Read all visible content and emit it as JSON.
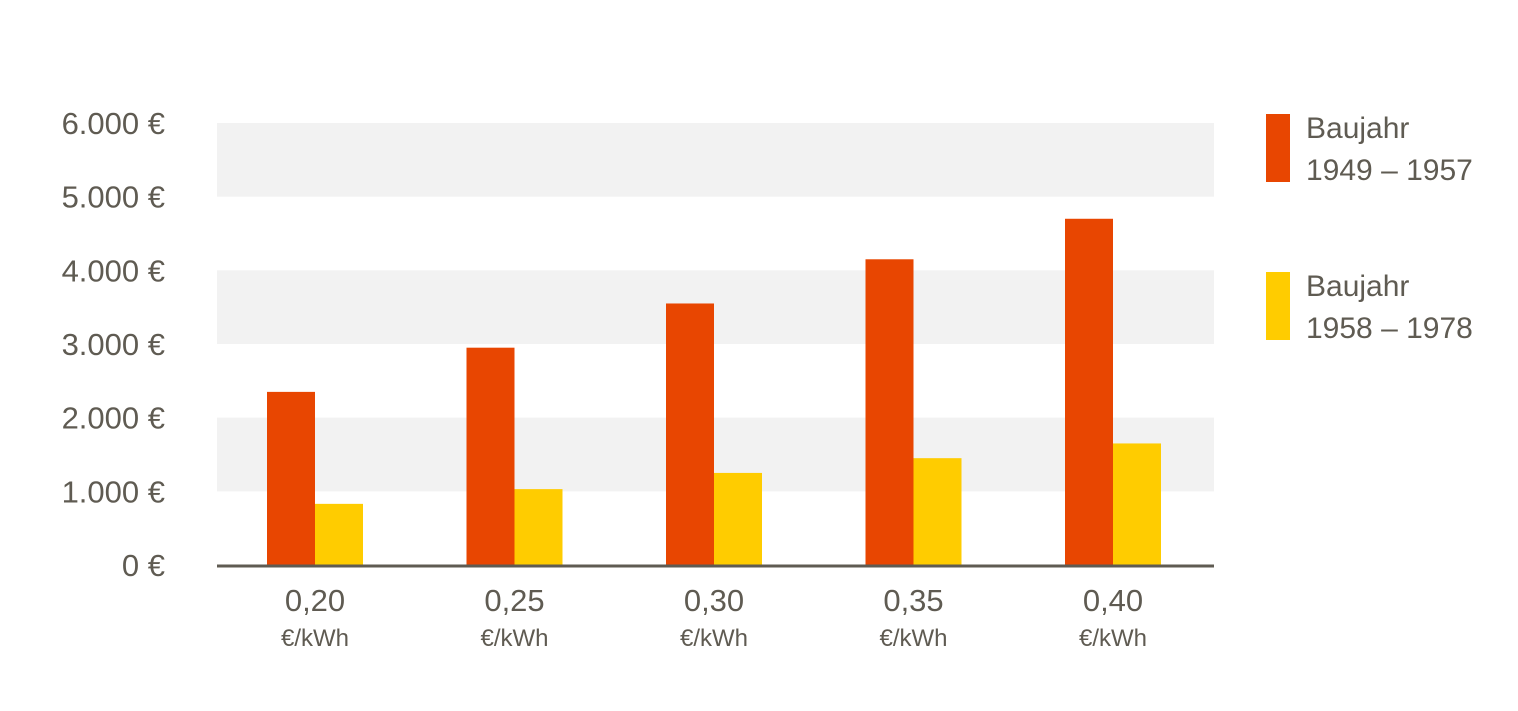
{
  "chart_data": {
    "type": "bar",
    "categories": [
      "0,20",
      "0,25",
      "0,30",
      "0,35",
      "0,40"
    ],
    "category_unit": "€/kWh",
    "series": [
      {
        "name_line1": "Baujahr",
        "name_line2": "1949 – 1957",
        "color": "#e84601",
        "values": [
          2350,
          2950,
          3550,
          4150,
          4700
        ]
      },
      {
        "name_line1": "Baujahr",
        "name_line2": "1958 – 1978",
        "color": "#ffcc00",
        "values": [
          830,
          1030,
          1250,
          1450,
          1650
        ]
      }
    ],
    "yticks": [
      0,
      1000,
      2000,
      3000,
      4000,
      5000,
      6000
    ],
    "ytick_labels": [
      "0 €",
      "1.000 €",
      "2.000 €",
      "3.000 €",
      "4.000 €",
      "5.000 €",
      "6.000 €"
    ],
    "ylim": [
      0,
      6000
    ],
    "band_color": "#f2f2f2",
    "axis_color": "#5f5b52",
    "legend_position": "right"
  }
}
